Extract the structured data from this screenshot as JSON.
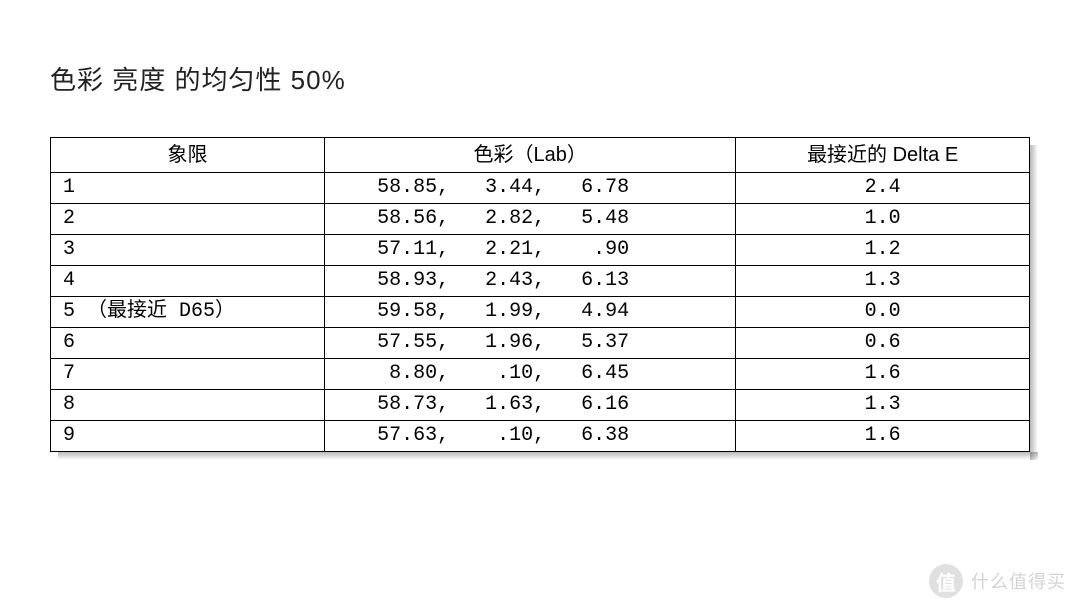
{
  "title": "色彩 亮度 的均匀性 50%",
  "table": {
    "type": "table",
    "border_color": "#000000",
    "background_color": "#ffffff",
    "font_color": "#000000",
    "header_fontsize": 20,
    "cell_fontsize": 20,
    "col_widths_pct": [
      28,
      42,
      30
    ],
    "columns": {
      "quadrant": "象限",
      "lab": "色彩（Lab）",
      "deltaE": "最接近的 Delta E"
    },
    "rows": [
      {
        "quadrant": "1",
        "L": "58.85",
        "a": "3.44",
        "b": "6.78",
        "deltaE": "2.4"
      },
      {
        "quadrant": "2",
        "L": "58.56",
        "a": "2.82",
        "b": "5.48",
        "deltaE": "1.0"
      },
      {
        "quadrant": "3",
        "L": "57.11",
        "a": "2.21",
        "b": ".90",
        "deltaE": "1.2"
      },
      {
        "quadrant": "4",
        "L": "58.93",
        "a": "2.43",
        "b": "6.13",
        "deltaE": "1.3"
      },
      {
        "quadrant": "5 （最接近 D65）",
        "L": "59.58",
        "a": "1.99",
        "b": "4.94",
        "deltaE": "0.0"
      },
      {
        "quadrant": "6",
        "L": "57.55",
        "a": "1.96",
        "b": "5.37",
        "deltaE": "0.6"
      },
      {
        "quadrant": "7",
        "L": "8.80",
        "a": ".10",
        "b": "6.45",
        "deltaE": "1.6"
      },
      {
        "quadrant": "8",
        "L": "58.73",
        "a": "1.63",
        "b": "6.16",
        "deltaE": "1.3"
      },
      {
        "quadrant": "9",
        "L": "57.63",
        "a": ".10",
        "b": "6.38",
        "deltaE": "1.6"
      }
    ]
  },
  "watermark": {
    "logo_text": "值",
    "text": "什么值得买",
    "logo_bg": "#888888",
    "text_color": "#555555",
    "opacity": 0.25
  }
}
